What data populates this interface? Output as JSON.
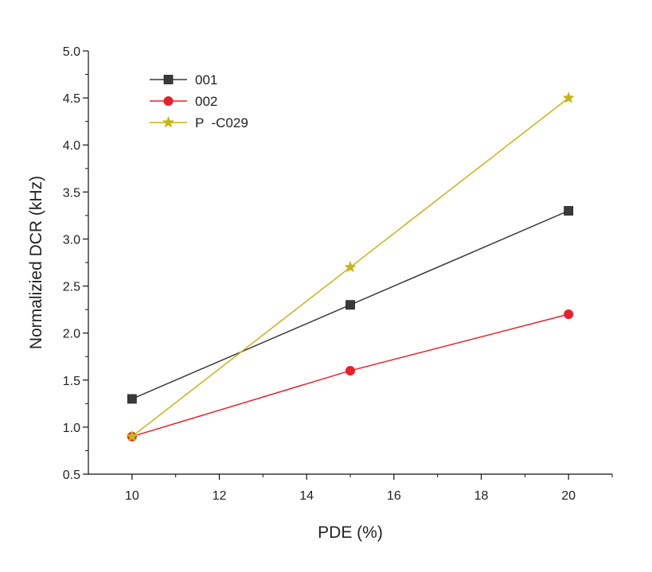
{
  "chart_data": {
    "type": "line",
    "title": "",
    "xlabel": "PDE (%)",
    "ylabel": "Normalizied DCR (kHz)",
    "xlim": [
      9,
      21
    ],
    "ylim": [
      0.5,
      5.0
    ],
    "x_ticks": [
      10,
      12,
      14,
      16,
      18,
      20
    ],
    "x_tick_labels": [
      "10",
      "12",
      "14",
      "16",
      "18",
      "20"
    ],
    "y_ticks": [
      0.5,
      1.0,
      1.5,
      2.0,
      2.5,
      3.0,
      3.5,
      4.0,
      4.5,
      5.0
    ],
    "y_tick_labels": [
      "0.5",
      "1.0",
      "1.5",
      "2.0",
      "2.5",
      "3.0",
      "3.5",
      "4.0",
      "4.5",
      "5.0"
    ],
    "grid": false,
    "legend_position": "top-left",
    "series": [
      {
        "name": "001",
        "x": [
          10,
          15,
          20
        ],
        "values": [
          1.3,
          2.3,
          3.3
        ],
        "color": "#3a3a3a",
        "marker": "square"
      },
      {
        "name": "002",
        "x": [
          10,
          15,
          20
        ],
        "values": [
          0.9,
          1.6,
          2.2
        ],
        "color": "#e8202a",
        "marker": "circle"
      },
      {
        "name": "P  -C029",
        "x": [
          10,
          15,
          20
        ],
        "values": [
          0.9,
          2.7,
          4.5
        ],
        "color": "#c8b414",
        "marker": "star"
      }
    ]
  }
}
